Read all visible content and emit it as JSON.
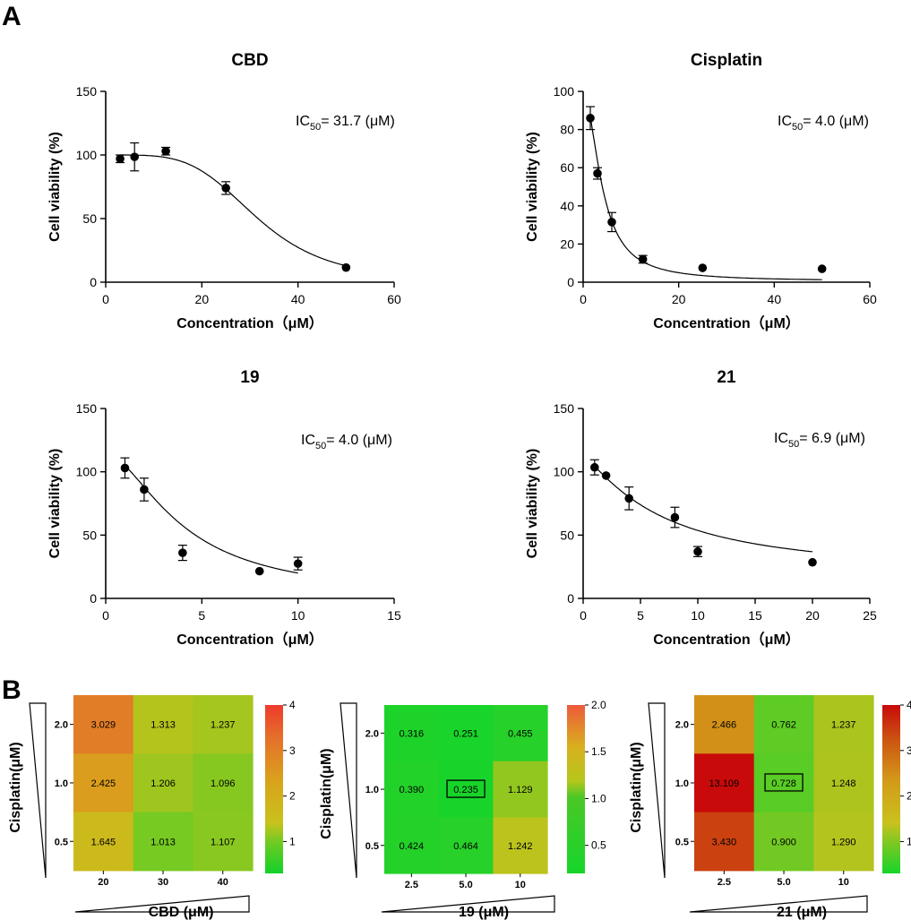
{
  "panels": {
    "a": "A",
    "b": "B"
  },
  "chart_data": [
    {
      "type": "scatter",
      "title": "CBD",
      "xlabel": "Concentration（μM）",
      "ylabel": "Cell viability (%)",
      "xlim": [
        0,
        60
      ],
      "ylim": [
        0,
        150
      ],
      "xticks": [
        0,
        20,
        40,
        60
      ],
      "yticks": [
        0,
        50,
        100,
        150
      ],
      "ic50": {
        "prefix": "IC",
        "sub": "50",
        "text": "= 31.7 (μM)",
        "value": 31.7
      },
      "hill": 4.2,
      "top": 100,
      "bottom": 0,
      "points": [
        {
          "x": 3,
          "y": 97,
          "err": 3
        },
        {
          "x": 6,
          "y": 98.5,
          "err": 11
        },
        {
          "x": 12.5,
          "y": 103,
          "err": 3
        },
        {
          "x": 25,
          "y": 74,
          "err": 5
        },
        {
          "x": 50,
          "y": 11.5,
          "err": 0
        }
      ]
    },
    {
      "type": "scatter",
      "title": "Cisplatin",
      "xlabel": "Concentration（μM）",
      "ylabel": "Cell viability (%)",
      "xlim": [
        0,
        60
      ],
      "ylim": [
        0,
        100
      ],
      "xticks": [
        0,
        20,
        40,
        60
      ],
      "yticks": [
        0,
        20,
        40,
        60,
        80,
        100
      ],
      "ic50": {
        "prefix": "IC",
        "sub": "50",
        "text": "= 4.0 (μM)",
        "value": 4.0
      },
      "hill": 1.9,
      "top": 100,
      "bottom": 0.5,
      "points": [
        {
          "x": 1.5,
          "y": 86,
          "err": 6
        },
        {
          "x": 3,
          "y": 57,
          "err": 3
        },
        {
          "x": 6,
          "y": 31.5,
          "err": 5
        },
        {
          "x": 12.5,
          "y": 12,
          "err": 2
        },
        {
          "x": 25,
          "y": 7.5,
          "err": 0
        },
        {
          "x": 50,
          "y": 7,
          "err": 0
        }
      ]
    },
    {
      "type": "scatter",
      "title": "19",
      "xlabel": "Concentration（μM）",
      "ylabel": "Cell viability (%)",
      "xlim": [
        0,
        15
      ],
      "ylim": [
        0,
        150
      ],
      "xticks": [
        0,
        5,
        10,
        15
      ],
      "yticks": [
        0,
        50,
        100,
        150
      ],
      "ic50": {
        "prefix": "IC",
        "sub": "50",
        "text": "= 4.0 (μM)",
        "value": 4.0
      },
      "hill": 1.7,
      "top": 115,
      "bottom": 0,
      "points": [
        {
          "x": 1,
          "y": 103,
          "err": 8
        },
        {
          "x": 2,
          "y": 86,
          "err": 9
        },
        {
          "x": 4,
          "y": 36,
          "err": 6
        },
        {
          "x": 8,
          "y": 21.5,
          "err": 0
        },
        {
          "x": 10,
          "y": 27.5,
          "err": 5
        }
      ]
    },
    {
      "type": "scatter",
      "title": "21",
      "xlabel": "Concentration（μM）",
      "ylabel": "Cell viability (%)",
      "xlim": [
        0,
        25
      ],
      "ylim": [
        0,
        150
      ],
      "xticks": [
        0,
        5,
        10,
        15,
        20,
        25
      ],
      "yticks": [
        0,
        50,
        100,
        150
      ],
      "ic50": {
        "prefix": "IC",
        "sub": "50",
        "text": "= 6.9 (μM)",
        "value": 6.9
      },
      "hill": 1.25,
      "top": 112,
      "bottom": 17,
      "points": [
        {
          "x": 1,
          "y": 103.5,
          "err": 6
        },
        {
          "x": 2,
          "y": 97,
          "err": 0
        },
        {
          "x": 4,
          "y": 79,
          "err": 9
        },
        {
          "x": 8,
          "y": 64,
          "err": 8
        },
        {
          "x": 10,
          "y": 37,
          "err": 4
        },
        {
          "x": 20,
          "y": 28.5,
          "err": 0
        }
      ]
    },
    {
      "type": "heatmap",
      "xlabel": "CBD (μM)",
      "ylabel": "Cisplatin(μM)",
      "x": [
        "20",
        "30",
        "40"
      ],
      "y": [
        "2.0",
        "1.0",
        "0.5"
      ],
      "values": [
        [
          "3.029",
          "1.313",
          "1.237"
        ],
        [
          "2.425",
          "1.206",
          "1.096"
        ],
        [
          "1.645",
          "1.013",
          "1.107"
        ]
      ],
      "highlight": null,
      "colorbar": {
        "min": 0.3,
        "max": 4,
        "ticks": [
          "4",
          "3",
          "2",
          "1"
        ],
        "tickvals": [
          4,
          3,
          2,
          1
        ],
        "scheme": "green-yellow-red"
      }
    },
    {
      "type": "heatmap",
      "xlabel": "19 (μM)",
      "ylabel": "Cisplatin(μM)",
      "x": [
        "2.5",
        "5.0",
        "10"
      ],
      "y": [
        "2.0",
        "1.0",
        "0.5"
      ],
      "values": [
        [
          "0.316",
          "0.251",
          "0.455"
        ],
        [
          "0.390",
          "0.235",
          "1.129"
        ],
        [
          "0.424",
          "0.464",
          "1.242"
        ]
      ],
      "highlight": [
        1,
        1
      ],
      "colorbar": {
        "min": 0.2,
        "max": 2,
        "ticks": [
          "2.0",
          "1.5",
          "1.0",
          "0.5"
        ],
        "tickvals": [
          2,
          1.5,
          1,
          0.5
        ],
        "scheme": "green-yellow-orange"
      }
    },
    {
      "type": "heatmap",
      "xlabel": "21 (μM)",
      "ylabel": "Cisplatin(μM)",
      "x": [
        "2.5",
        "5.0",
        "10"
      ],
      "y": [
        "2.0",
        "1.0",
        "0.5"
      ],
      "values": [
        [
          "2.466",
          "0.762",
          "1.237"
        ],
        [
          "13.109",
          "0.728",
          "1.248"
        ],
        [
          "3.430",
          "0.900",
          "1.290"
        ]
      ],
      "highlight": [
        1,
        1
      ],
      "colorbar": {
        "min": 0.3,
        "max": 4,
        "ticks": [
          "4",
          "3",
          "2",
          "1"
        ],
        "tickvals": [
          4,
          3,
          2,
          1
        ],
        "scheme": "green-yellow-darkred"
      }
    }
  ]
}
